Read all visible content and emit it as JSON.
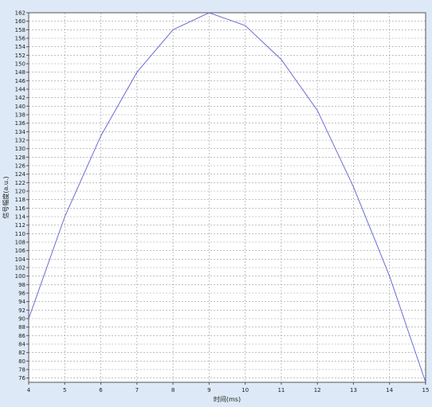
{
  "chart_data": {
    "type": "line",
    "title": "",
    "xlabel": "时间(ms)",
    "ylabel": "信号幅度(a.u.)",
    "xlim": [
      4,
      15
    ],
    "ylim": [
      75,
      162
    ],
    "x_ticks": [
      4,
      5,
      6,
      7,
      8,
      9,
      10,
      11,
      12,
      13,
      14,
      15
    ],
    "y_ticks": [
      76,
      78,
      80,
      82,
      84,
      86,
      88,
      90,
      92,
      94,
      96,
      98,
      100,
      102,
      104,
      106,
      108,
      110,
      112,
      114,
      116,
      118,
      120,
      122,
      124,
      126,
      128,
      130,
      132,
      134,
      136,
      138,
      140,
      142,
      144,
      146,
      148,
      150,
      152,
      154,
      156,
      158,
      160,
      162
    ],
    "grid": true,
    "legend": "none",
    "colors": {
      "line": "#6b6bd6",
      "grid": "#9a9a9a",
      "plot_bg": "#ffffff",
      "page_bg": "#dde9f6"
    },
    "series": [
      {
        "x": [
          4,
          5,
          6,
          7,
          8,
          9,
          10,
          11,
          12,
          13,
          14,
          15
        ],
        "values": [
          90,
          114,
          133,
          148,
          158,
          162,
          159,
          151,
          139,
          121,
          100,
          75
        ]
      }
    ]
  }
}
